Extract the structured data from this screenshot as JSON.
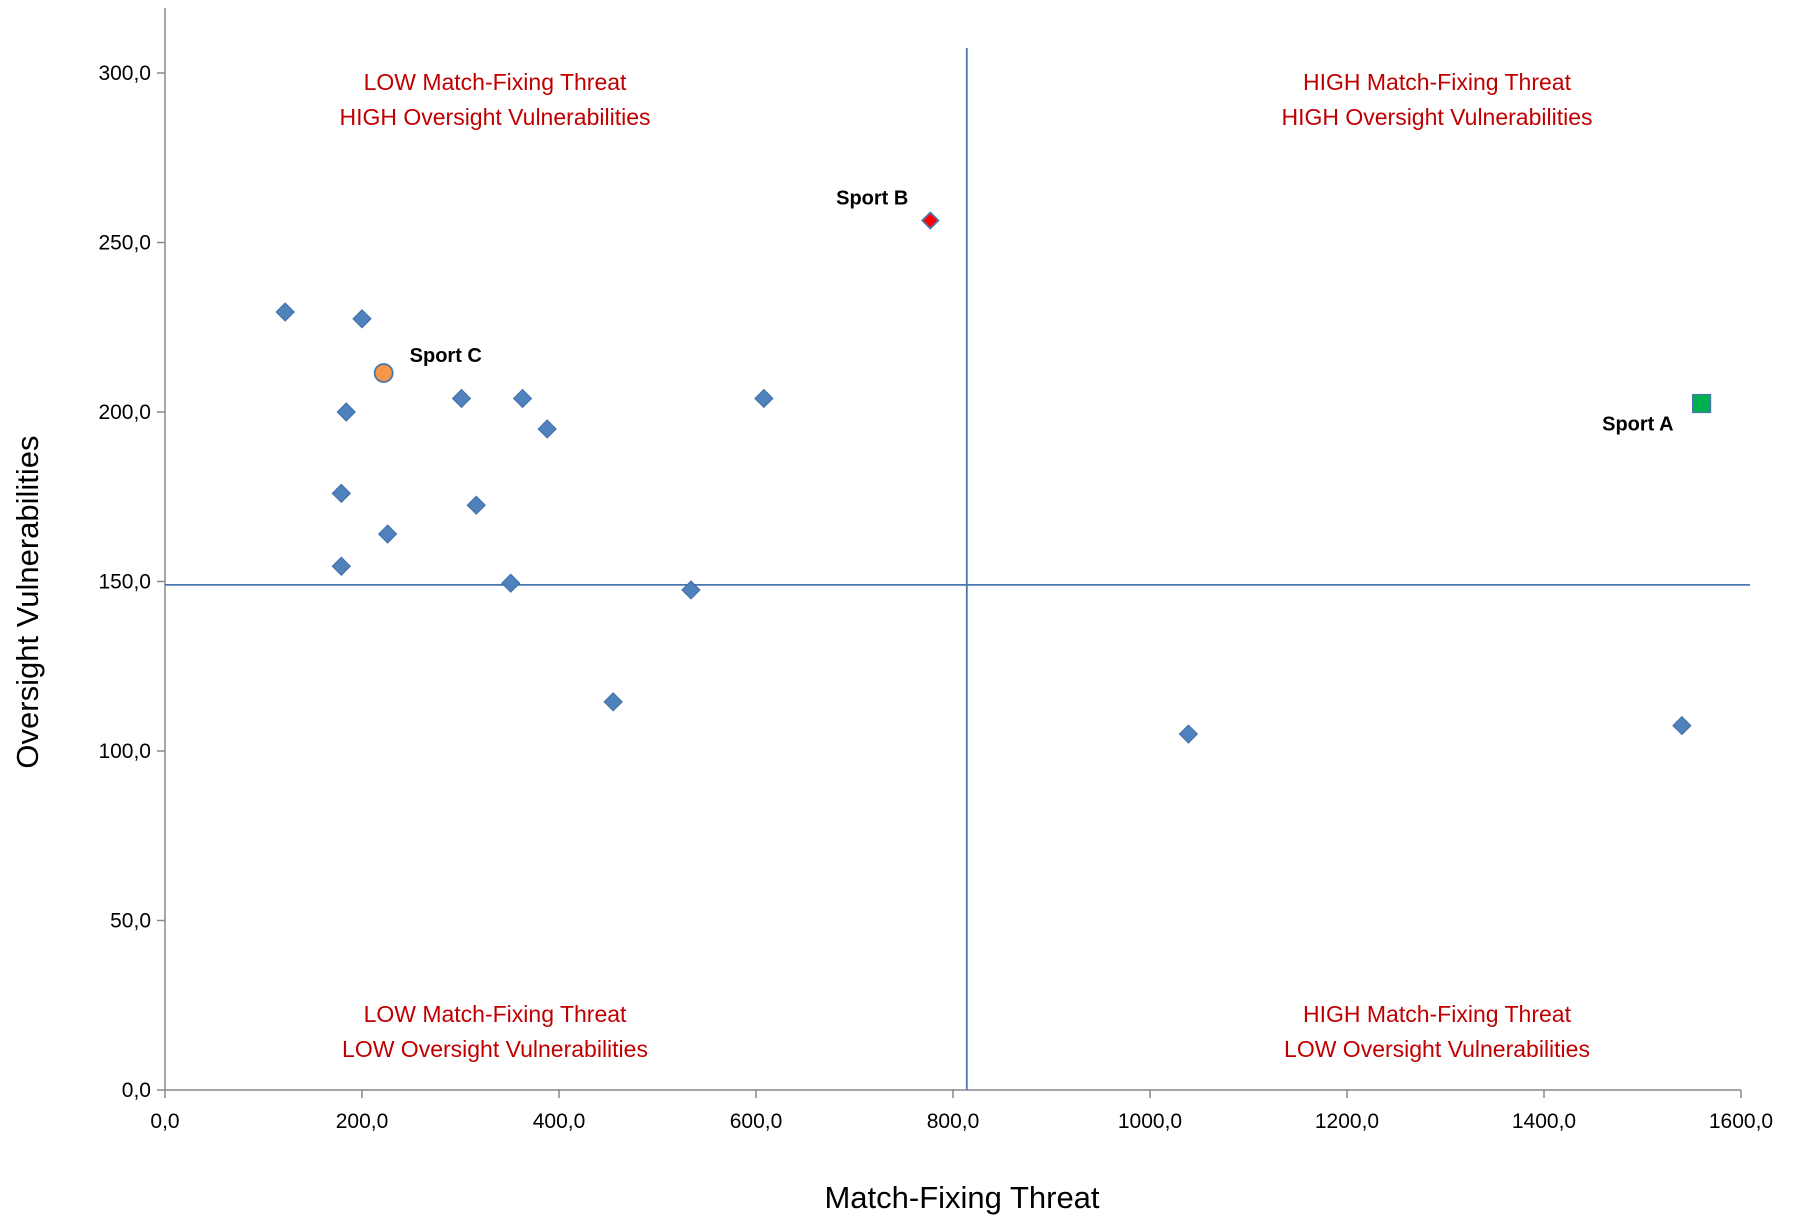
{
  "chart_data": {
    "type": "scatter",
    "xlabel": "Match-Fixing Threat",
    "ylabel": "Oversight Vulnerabilities",
    "xlim": [
      0,
      1600
    ],
    "ylim": [
      0,
      300
    ],
    "x_ticks": [
      "0,0",
      "200,0",
      "400,0",
      "600,0",
      "800,0",
      "1000,0",
      "1200,0",
      "1400,0",
      "1600,0"
    ],
    "y_ticks": [
      "0,0",
      "50,0",
      "100,0",
      "150,0",
      "200,0",
      "250,0",
      "300,0"
    ],
    "x_tick_values": [
      0,
      200,
      400,
      600,
      800,
      1000,
      1200,
      1400,
      1600
    ],
    "y_tick_values": [
      0,
      50,
      100,
      150,
      200,
      250,
      300
    ],
    "grid": false,
    "reference_lines": {
      "x": 814,
      "y": 149
    },
    "quadrant_labels": [
      {
        "position": "top-left",
        "line1": "LOW Match-Fixing Threat",
        "line2": "HIGH Oversight Vulnerabilities"
      },
      {
        "position": "top-right",
        "line1": "HIGH Match-Fixing Threat",
        "line2": "HIGH Oversight Vulnerabilities"
      },
      {
        "position": "bottom-left",
        "line1": "LOW Match-Fixing Threat",
        "line2": "LOW Oversight Vulnerabilities"
      },
      {
        "position": "bottom-right",
        "line1": "HIGH Match-Fixing Threat",
        "line2": "LOW Oversight Vulnerabilities"
      }
    ],
    "points": [
      {
        "x": 122,
        "y": 229.5
      },
      {
        "x": 200,
        "y": 227.5
      },
      {
        "x": 184,
        "y": 200
      },
      {
        "x": 301,
        "y": 204
      },
      {
        "x": 363,
        "y": 204
      },
      {
        "x": 388,
        "y": 195
      },
      {
        "x": 608,
        "y": 204
      },
      {
        "x": 179,
        "y": 176
      },
      {
        "x": 316,
        "y": 172.5
      },
      {
        "x": 226,
        "y": 164
      },
      {
        "x": 179,
        "y": 154.5
      },
      {
        "x": 351,
        "y": 149.5
      },
      {
        "x": 534,
        "y": 147.5
      },
      {
        "x": 455,
        "y": 114.5
      },
      {
        "x": 1039,
        "y": 105
      },
      {
        "x": 1540,
        "y": 107.5
      }
    ],
    "highlighted": [
      {
        "name": "Sport A",
        "x": 1560,
        "y": 202.5,
        "marker": "square",
        "color": "#00b050"
      },
      {
        "name": "Sport B",
        "x": 777,
        "y": 256.5,
        "marker": "diamond",
        "color": "#ff0000"
      },
      {
        "name": "Sport C",
        "x": 222,
        "y": 211.5,
        "marker": "circle",
        "color": "#f79646"
      }
    ],
    "colors": {
      "points": "#4f81bd",
      "reference_lines": "#4a76b0",
      "quadrant_text": "#c00000"
    }
  }
}
